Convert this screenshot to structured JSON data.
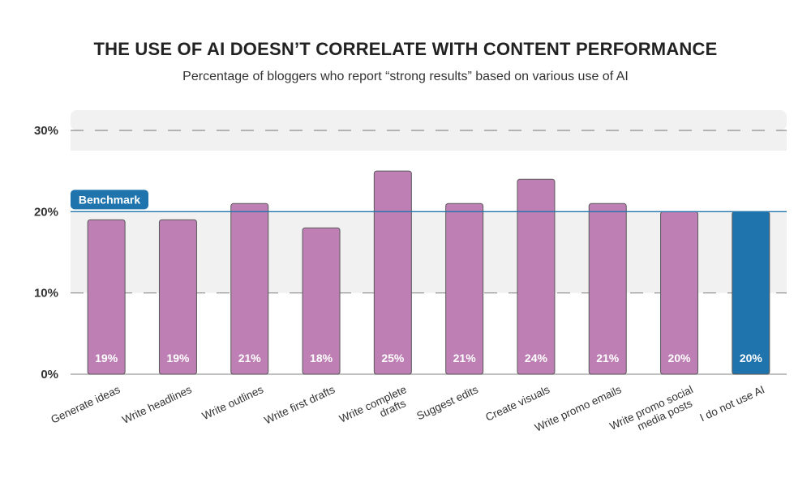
{
  "header": {
    "title": "THE USE OF AI DOESN’T CORRELATE WITH CONTENT PERFORMANCE",
    "subtitle": "Percentage of bloggers who report “strong results” based on various use of AI"
  },
  "colors": {
    "bar": "#bd7fb4",
    "bar_highlight": "#1f74ad",
    "benchmark": "#1f74ad",
    "band": "#f1f1f1"
  },
  "chart_data": {
    "type": "bar",
    "title": "THE USE OF AI DOESN’T CORRELATE WITH CONTENT PERFORMANCE",
    "subtitle": "Percentage of bloggers who report “strong results” based on various use of AI",
    "xlabel": "",
    "ylabel": "",
    "ylim": [
      0,
      30
    ],
    "yticks": [
      0,
      10,
      20,
      30
    ],
    "ytick_labels": [
      "0%",
      "10%",
      "20%",
      "30%"
    ],
    "categories": [
      "Generate ideas",
      "Write headlines",
      "Write outlines",
      "Write first drafts",
      "Write complete drafts",
      "Suggest edits",
      "Create visuals",
      "Write promo emails",
      "Write promo social media posts",
      "I do not use AI"
    ],
    "values": [
      19,
      19,
      21,
      18,
      25,
      21,
      24,
      21,
      20,
      20
    ],
    "value_labels": [
      "19%",
      "19%",
      "21%",
      "18%",
      "25%",
      "21%",
      "24%",
      "21%",
      "20%",
      "20%"
    ],
    "highlight_index": 9,
    "benchmark": {
      "label": "Benchmark",
      "value": 20
    }
  }
}
